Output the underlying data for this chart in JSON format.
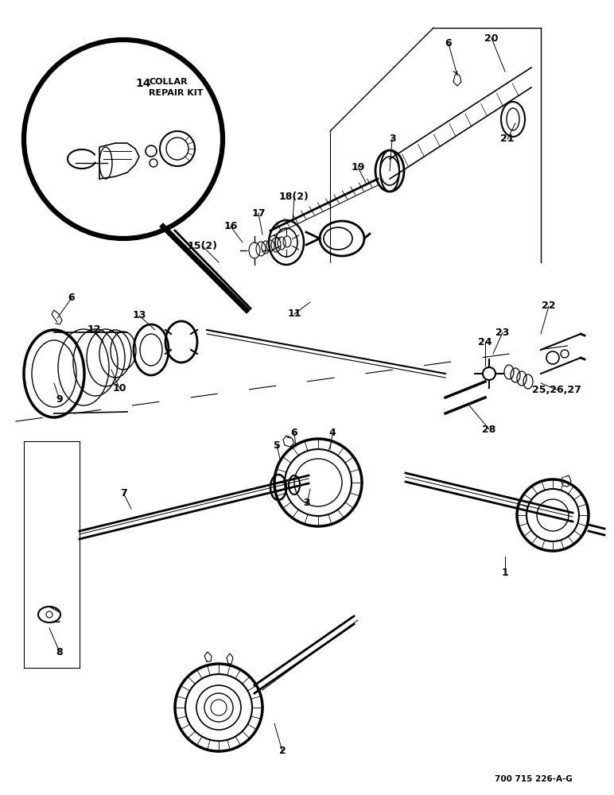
{
  "bg": "#ffffff",
  "fw": 7.72,
  "fh": 10.0,
  "dpi": 100,
  "ref_code": "700 715 226-A-G"
}
